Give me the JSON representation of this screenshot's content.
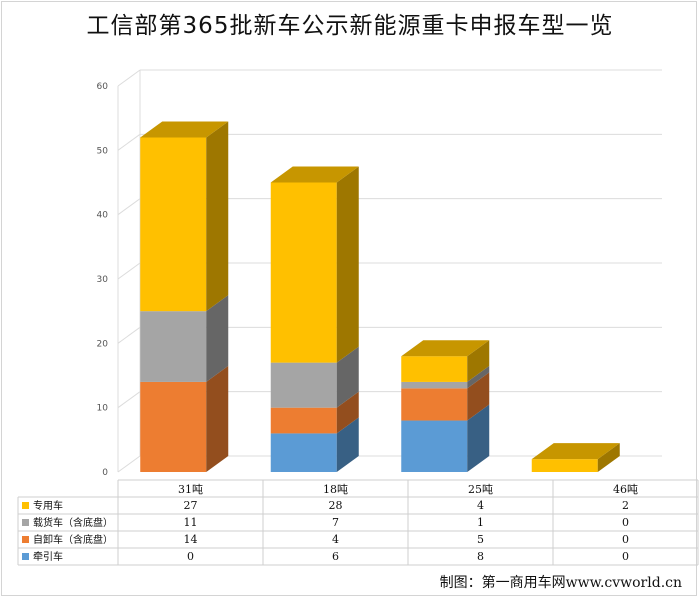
{
  "chart_data": {
    "type": "bar",
    "stacked": true,
    "three_d": true,
    "title": "工信部第365批新车公示新能源重卡申报车型一览",
    "categories": [
      "31吨",
      "18吨",
      "25吨",
      "46吨"
    ],
    "series": [
      {
        "name": "牵引车",
        "values": [
          0,
          6,
          8,
          0
        ],
        "color": "#5b9bd5"
      },
      {
        "name": "自卸车（含底盘）",
        "values": [
          14,
          4,
          5,
          0
        ],
        "color": "#ed7d31"
      },
      {
        "name": "载货车（含底盘）",
        "values": [
          11,
          7,
          1,
          0
        ],
        "color": "#a5a5a5"
      },
      {
        "name": "专用车",
        "values": [
          27,
          28,
          4,
          2
        ],
        "color": "#ffc000"
      }
    ],
    "ylim": [
      0,
      60
    ],
    "yticks": [
      0,
      10,
      20,
      30,
      40,
      50,
      60
    ],
    "data_table": true,
    "grid": true
  },
  "credit": "制图：第一商用车网www.cvworld.cn"
}
